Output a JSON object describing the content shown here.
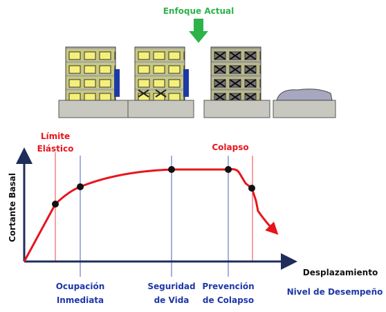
{
  "title": "Enfoque Actual",
  "y_axis_label": "Cortante Basal",
  "x_axis_label": "Desplazamiento",
  "top_labels": [
    {
      "lines": [
        "Límite",
        "Elástico"
      ]
    },
    {
      "lines": [
        "Colapso"
      ]
    }
  ],
  "levels": [
    {
      "lines": [
        "Ocupación",
        "Inmediata"
      ]
    },
    {
      "lines": [
        "Seguridad",
        "de Vida"
      ]
    },
    {
      "lines": [
        "Prevención",
        "de Colapso"
      ]
    }
  ],
  "levels_title": "Nivel de Desempeño"
}
